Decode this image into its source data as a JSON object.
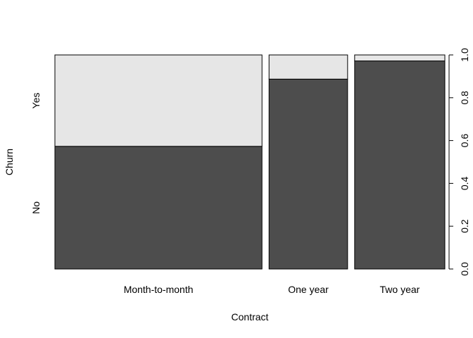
{
  "chart_data": {
    "type": "spineplot",
    "xlabel": "Contract",
    "ylabel": "Churn",
    "categories": [
      "Month-to-month",
      "One year",
      "Two year"
    ],
    "category_share": [
      0.551,
      0.209,
      0.24
    ],
    "levels": [
      "No",
      "Yes"
    ],
    "series": [
      {
        "name": "No",
        "values": [
          0.573,
          0.887,
          0.972
        ]
      },
      {
        "name": "Yes",
        "values": [
          0.427,
          0.113,
          0.028
        ]
      }
    ],
    "ylim": [
      0,
      1
    ],
    "yticks": [
      "0.0",
      "0.2",
      "0.4",
      "0.6",
      "0.8",
      "1.0"
    ],
    "colors": {
      "No": "#4d4d4d",
      "Yes": "#e6e6e6",
      "border": "#000000"
    },
    "grid": false,
    "legend": "none"
  }
}
